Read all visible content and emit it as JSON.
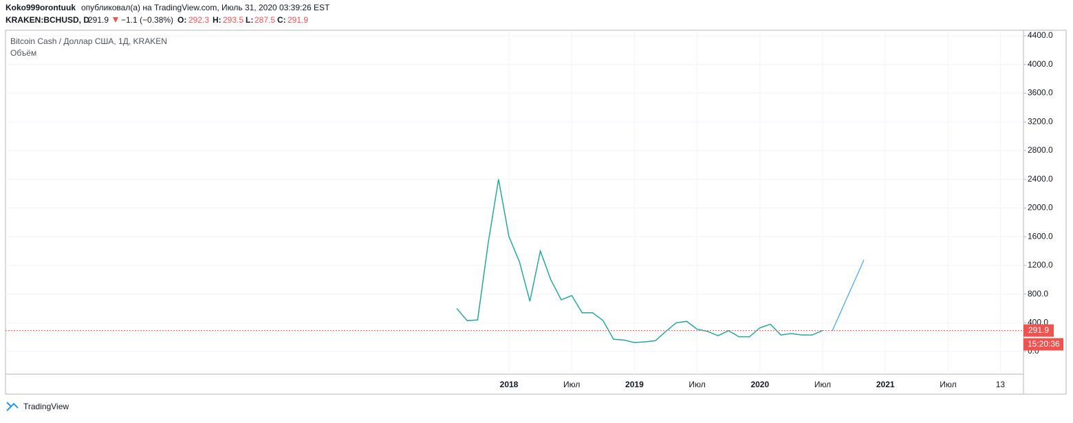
{
  "header": {
    "author": "Koko999orontuuk",
    "published": "опубликовал(а) на TradingView.com, Июль 31, 2020 03:39:26 EST",
    "symbol": "KRAKEN:BCHUSD, D",
    "last": 291.9,
    "change": "−1.1 (−0.38%)",
    "o_label": "O:",
    "open": 292.3,
    "h_label": "H:",
    "high": 293.5,
    "l_label": "L:",
    "low": 287.5,
    "c_label": "C:",
    "close": 291.9
  },
  "footer": {
    "brand": "TradingView"
  },
  "chart_data": {
    "type": "line",
    "title": "Bitcoin Cash / Доллар США, 1Д, KRAKEN",
    "subtitle": "Объём",
    "categories": [
      null,
      null,
      null,
      null,
      null,
      "2018",
      null,
      null,
      null,
      null,
      null,
      "Июл",
      null,
      null,
      null,
      null,
      null,
      "2019",
      null,
      null,
      null,
      null,
      null,
      "Июл",
      null,
      null,
      null,
      null,
      null,
      "2020",
      null,
      null,
      null,
      null,
      null,
      "Июл",
      null,
      null,
      null,
      null,
      null,
      "2021",
      null,
      null,
      null,
      null,
      null,
      "Июл",
      null,
      null,
      null,
      null,
      "13",
      null,
      null
    ],
    "series": [
      {
        "name": "Bitcoin Cash / Доллар США",
        "color": "#26a69a",
        "values": [
          600,
          430,
          440,
          1500,
          2400,
          1600,
          1250,
          700,
          1400,
          1000,
          720,
          780,
          540,
          540,
          430,
          170,
          160,
          125,
          135,
          150,
          280,
          400,
          420,
          310,
          280,
          220,
          290,
          205,
          205,
          330,
          380,
          230,
          250,
          230,
          230,
          292,
          null,
          null,
          null,
          null,
          null,
          null,
          null,
          null,
          null,
          null,
          null,
          null,
          null,
          null,
          null,
          null,
          null,
          null,
          null
        ]
      }
    ],
    "ylim": [
      -316,
      4477
    ],
    "yticks": [
      {
        "value": 0,
        "label": "0.0"
      },
      {
        "value": 400,
        "label": "400.0"
      },
      {
        "value": 800,
        "label": "800.0"
      },
      {
        "value": 1200,
        "label": "1200.0"
      },
      {
        "value": 1600,
        "label": "1600.0"
      },
      {
        "value": 2000,
        "label": "2000.0"
      },
      {
        "value": 2400,
        "label": "2400.0"
      },
      {
        "value": 2800,
        "label": "2800.0"
      },
      {
        "value": 3200,
        "label": "3200.0"
      },
      {
        "value": 3600,
        "label": "3600.0"
      },
      {
        "value": 4000,
        "label": "4000.0"
      },
      {
        "value": 4400,
        "label": "4400.0"
      }
    ],
    "grid": true,
    "last_price": 291.9,
    "last_price_color": "#ef5350",
    "countdown": "15:20:36"
  }
}
